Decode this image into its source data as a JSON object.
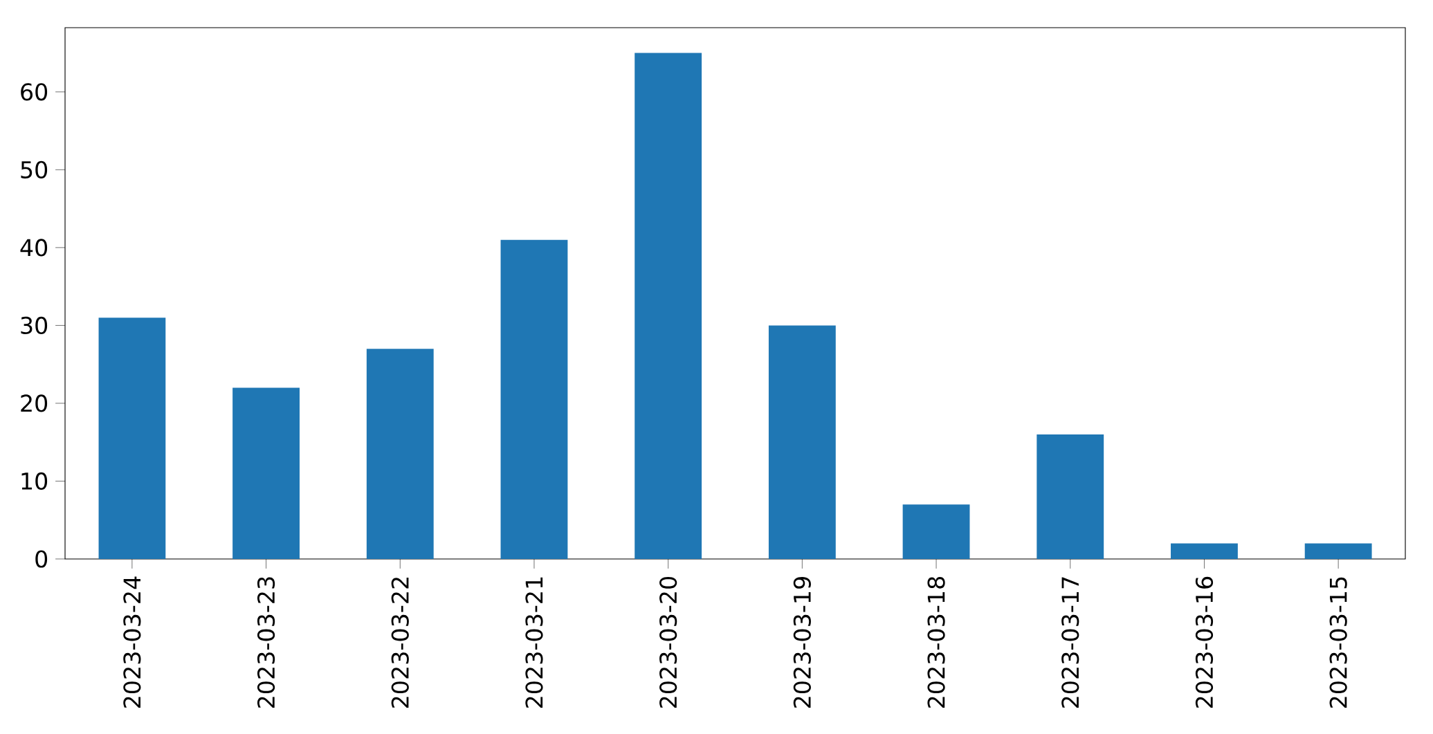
{
  "chart_data": {
    "type": "bar",
    "categories": [
      "2023-03-24",
      "2023-03-23",
      "2023-03-22",
      "2023-03-21",
      "2023-03-20",
      "2023-03-19",
      "2023-03-18",
      "2023-03-17",
      "2023-03-16",
      "2023-03-15"
    ],
    "values": [
      31,
      22,
      27,
      41,
      65,
      30,
      7,
      16,
      2,
      2
    ],
    "color": "#1f77b4",
    "ylim": [
      0,
      68.25
    ],
    "yticks": [
      0,
      10,
      20,
      30,
      40,
      50,
      60
    ]
  }
}
